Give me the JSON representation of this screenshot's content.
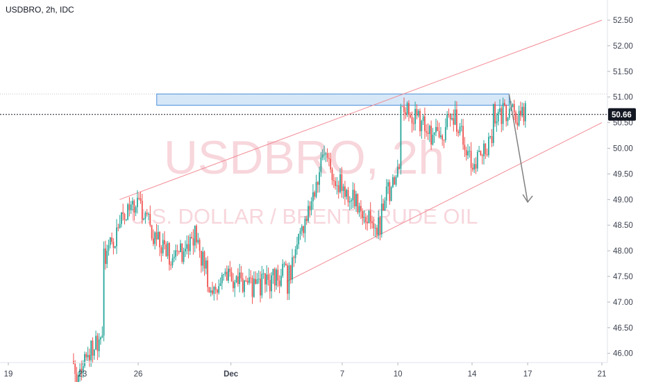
{
  "header": {
    "title": "USDBRO, 2h, IDC"
  },
  "watermark": {
    "symbol": "USDBRO, 2h",
    "description": "U.S. DOLLAR / BRENT CRUDE OIL"
  },
  "colors": {
    "up": "#26a69a",
    "down": "#ef5350",
    "channel": "#f28b95",
    "zone_fill": "#cfe3f7",
    "zone_border": "#4a90d9",
    "arrow": "#808080",
    "price_line": "#131722",
    "grid_axis": "#e0e3eb"
  },
  "chart_data": {
    "type": "candlestick",
    "title": "USDBRO, 2h, IDC",
    "ylim": [
      45.87,
      53.0
    ],
    "y_ticks": [
      "46.00",
      "46.50",
      "47.00",
      "47.50",
      "48.00",
      "48.50",
      "49.00",
      "49.50",
      "50.00",
      "50.50",
      "51.00",
      "51.50",
      "52.00",
      "52.50"
    ],
    "x_ticks": [
      "19",
      "23",
      "26",
      "Dec",
      "7",
      "10",
      "14",
      "17",
      "21"
    ],
    "last_price": "50.66",
    "series": [
      {
        "type": "channel_upper",
        "from": [
          "Nov 25",
          49.0
        ],
        "to": [
          "Dec 21",
          52.5
        ]
      },
      {
        "type": "channel_lower",
        "from": [
          "Dec 4",
          47.4
        ],
        "to": [
          "Dec 21",
          50.5
        ]
      },
      {
        "type": "resistance_zone",
        "from": "Nov 27",
        "to": "Dec 21",
        "range": [
          50.84,
          51.06
        ]
      },
      {
        "type": "projection_arrow",
        "from": [
          "Dec 16",
          51.05
        ],
        "to": [
          "Dec 17",
          48.95
        ]
      }
    ],
    "price_path": [
      [
        "Nov 23",
        45.85
      ],
      [
        "Nov 24",
        46.4
      ],
      [
        "Nov 24",
        47.8
      ],
      [
        "Nov 25",
        48.3
      ],
      [
        "Nov 25",
        48.6
      ],
      [
        "Nov 26",
        48.9
      ],
      [
        "Nov 27",
        48.2
      ],
      [
        "Nov 28",
        47.8
      ],
      [
        "Nov 29",
        48.3
      ],
      [
        "Nov 30",
        47.2
      ],
      [
        "Dec 1",
        47.5
      ],
      [
        "Dec 2",
        47.3
      ],
      [
        "Dec 3",
        47.4
      ],
      [
        "Dec 4",
        47.6
      ],
      [
        "Dec 4",
        47.3
      ],
      [
        "Dec 5",
        48.7
      ],
      [
        "Dec 6",
        49.8
      ],
      [
        "Dec 7",
        49.2
      ],
      [
        "Dec 8",
        48.8
      ],
      [
        "Dec 9",
        48.4
      ],
      [
        "Dec 9",
        48.8
      ],
      [
        "Dec 10",
        49.5
      ],
      [
        "Dec 10",
        50.9
      ],
      [
        "Dec 11",
        50.6
      ],
      [
        "Dec 12",
        50.2
      ],
      [
        "Dec 13",
        50.6
      ],
      [
        "Dec 14",
        49.6
      ],
      [
        "Dec 15",
        50.2
      ],
      [
        "Dec 15",
        50.66
      ]
    ]
  }
}
